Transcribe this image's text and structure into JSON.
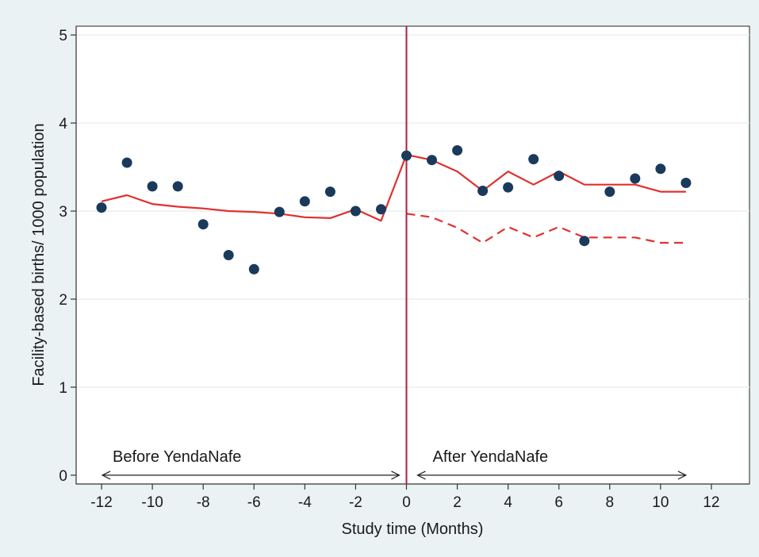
{
  "chart_data": {
    "type": "scatter",
    "title": "",
    "xlabel": "Study time (Months)",
    "ylabel": "Facility-based births/ 1000 population",
    "xlim": [
      -13,
      13.5
    ],
    "ylim": [
      -0.1,
      5.1
    ],
    "xticks": [
      -12,
      -10,
      -8,
      -6,
      -4,
      -2,
      0,
      2,
      4,
      6,
      8,
      10,
      12
    ],
    "xtick_labels": [
      "-12",
      "-10",
      "-8",
      "-6",
      "-4",
      "-2",
      "0",
      "2",
      "4",
      "6",
      "8",
      "10",
      "12"
    ],
    "yticks": [
      0,
      1,
      2,
      3,
      4,
      5
    ],
    "ytick_labels": [
      "0",
      "1",
      "2",
      "3",
      "4",
      "5"
    ],
    "grid": true,
    "intervention_x": 0,
    "series": [
      {
        "kind": "points",
        "color": "#1a3a5c",
        "x": [
          -12,
          -11,
          -10,
          -9,
          -8,
          -7,
          -6,
          -5,
          -4,
          -3,
          -2,
          -1,
          0,
          1,
          2,
          3,
          4,
          5,
          6,
          7,
          8,
          9,
          10,
          11
        ],
        "y": [
          3.04,
          3.55,
          3.28,
          3.28,
          2.85,
          2.5,
          2.34,
          2.99,
          3.11,
          3.22,
          3.0,
          3.02,
          3.63,
          3.58,
          3.69,
          3.23,
          3.27,
          3.59,
          3.4,
          2.66,
          3.22,
          3.37,
          3.48,
          3.32
        ]
      },
      {
        "kind": "line",
        "style": "solid",
        "color": "#e0312e",
        "x": [
          -12,
          -11,
          -10,
          -9,
          -8,
          -7,
          -6,
          -5,
          -4,
          -3,
          -2,
          -1,
          0,
          1,
          2,
          3,
          4,
          5,
          6,
          7,
          8,
          9,
          10,
          11
        ],
        "y": [
          3.11,
          3.18,
          3.08,
          3.05,
          3.03,
          3.0,
          2.99,
          2.97,
          2.93,
          2.92,
          3.02,
          2.89,
          3.64,
          3.58,
          3.45,
          3.23,
          3.45,
          3.3,
          3.45,
          3.3,
          3.3,
          3.3,
          3.22,
          3.22
        ]
      },
      {
        "kind": "line",
        "style": "dashed",
        "color": "#e0312e",
        "x": [
          0,
          1,
          2,
          3,
          4,
          5,
          6,
          7,
          8,
          9,
          10,
          11
        ],
        "y": [
          2.97,
          2.93,
          2.81,
          2.64,
          2.82,
          2.7,
          2.82,
          2.7,
          2.7,
          2.7,
          2.64,
          2.64
        ]
      }
    ],
    "annotations": [
      {
        "text": "Before YendaNafe",
        "x_from": -12,
        "x_to": 0
      },
      {
        "text": "After YendaNafe",
        "x_from": 0,
        "x_to": 11
      }
    ]
  }
}
